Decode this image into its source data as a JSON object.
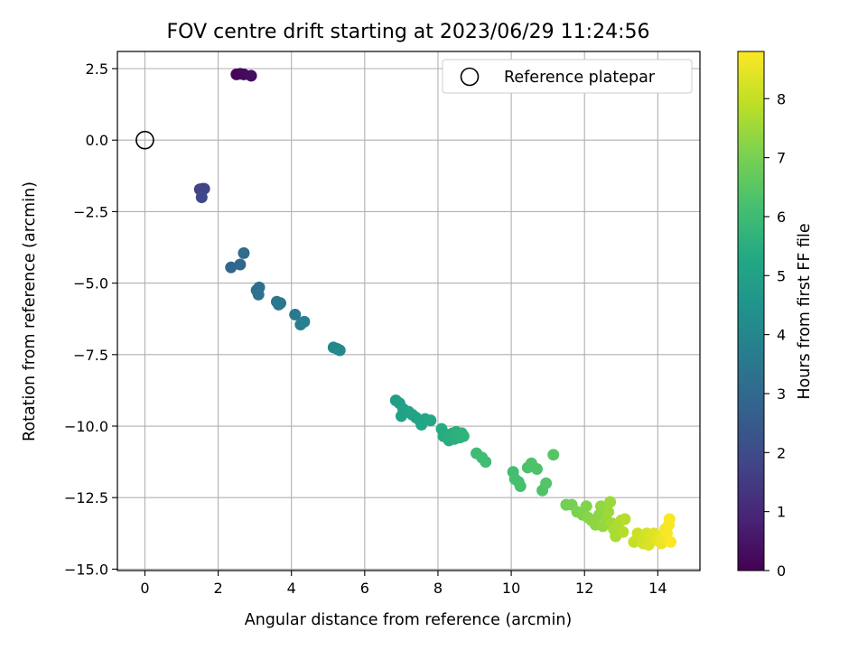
{
  "chart_data": {
    "type": "scatter",
    "title": "FOV centre drift starting at 2023/06/29 11:24:56",
    "xlabel": "Angular distance from reference (arcmin)",
    "ylabel": "Rotation from reference (arcmin)",
    "xlim": [
      -0.75,
      15.15
    ],
    "ylim": [
      -15.05,
      3.1
    ],
    "x_ticks": [
      0,
      2,
      4,
      6,
      8,
      10,
      12,
      14
    ],
    "y_ticks": [
      2.5,
      0.0,
      -2.5,
      -5.0,
      -7.5,
      -10.0,
      -12.5,
      -15.0
    ],
    "x_tick_labels": [
      "0",
      "2",
      "4",
      "6",
      "8",
      "10",
      "12",
      "14"
    ],
    "y_tick_labels": [
      "2.5",
      "0.0",
      "−2.5",
      "−5.0",
      "−7.5",
      "−10.0",
      "−12.5",
      "−15.0"
    ],
    "grid": true,
    "legend": {
      "position": "top-right",
      "entries": [
        "Reference platepar"
      ]
    },
    "reference_point": {
      "x": 0,
      "y": 0,
      "label": "Reference platepar"
    },
    "colorbar": {
      "label": "Hours from first FF file",
      "min": 0,
      "max": 8.8,
      "ticks": [
        0,
        1,
        2,
        3,
        4,
        5,
        6,
        7,
        8
      ],
      "colormap": "viridis"
    },
    "points": [
      {
        "x": 2.5,
        "y": 2.3,
        "h": 0.1
      },
      {
        "x": 2.6,
        "y": 2.32,
        "h": 0.15
      },
      {
        "x": 2.7,
        "y": 2.3,
        "h": 0.2
      },
      {
        "x": 2.9,
        "y": 2.25,
        "h": 0.3
      },
      {
        "x": 1.5,
        "y": -1.72,
        "h": 1.7
      },
      {
        "x": 1.58,
        "y": -1.7,
        "h": 1.75
      },
      {
        "x": 1.62,
        "y": -1.7,
        "h": 1.8
      },
      {
        "x": 1.55,
        "y": -2.0,
        "h": 1.9
      },
      {
        "x": 2.35,
        "y": -4.45,
        "h": 2.9
      },
      {
        "x": 2.6,
        "y": -4.35,
        "h": 3.0
      },
      {
        "x": 2.7,
        "y": -3.95,
        "h": 3.1
      },
      {
        "x": 3.05,
        "y": -5.25,
        "h": 3.2
      },
      {
        "x": 3.12,
        "y": -5.15,
        "h": 3.25
      },
      {
        "x": 3.1,
        "y": -5.4,
        "h": 3.3
      },
      {
        "x": 3.6,
        "y": -5.65,
        "h": 3.45
      },
      {
        "x": 3.65,
        "y": -5.75,
        "h": 3.5
      },
      {
        "x": 3.7,
        "y": -5.7,
        "h": 3.5
      },
      {
        "x": 4.1,
        "y": -6.1,
        "h": 3.6
      },
      {
        "x": 4.25,
        "y": -6.45,
        "h": 3.7
      },
      {
        "x": 4.35,
        "y": -6.35,
        "h": 3.75
      },
      {
        "x": 5.15,
        "y": -7.25,
        "h": 4.0
      },
      {
        "x": 5.25,
        "y": -7.3,
        "h": 4.05
      },
      {
        "x": 5.32,
        "y": -7.35,
        "h": 4.1
      },
      {
        "x": 6.85,
        "y": -9.1,
        "h": 4.9
      },
      {
        "x": 6.95,
        "y": -9.2,
        "h": 4.95
      },
      {
        "x": 7.05,
        "y": -9.4,
        "h": 5.0
      },
      {
        "x": 7.0,
        "y": -9.65,
        "h": 5.0
      },
      {
        "x": 7.2,
        "y": -9.5,
        "h": 5.05
      },
      {
        "x": 7.3,
        "y": -9.6,
        "h": 5.1
      },
      {
        "x": 7.4,
        "y": -9.7,
        "h": 5.1
      },
      {
        "x": 7.5,
        "y": -9.8,
        "h": 5.15
      },
      {
        "x": 7.55,
        "y": -9.95,
        "h": 5.2
      },
      {
        "x": 7.65,
        "y": -9.75,
        "h": 5.2
      },
      {
        "x": 7.8,
        "y": -9.8,
        "h": 5.25
      },
      {
        "x": 8.1,
        "y": -10.1,
        "h": 5.4
      },
      {
        "x": 8.15,
        "y": -10.35,
        "h": 5.45
      },
      {
        "x": 8.25,
        "y": -10.3,
        "h": 5.45
      },
      {
        "x": 8.3,
        "y": -10.5,
        "h": 5.5
      },
      {
        "x": 8.4,
        "y": -10.25,
        "h": 5.5
      },
      {
        "x": 8.45,
        "y": -10.45,
        "h": 5.55
      },
      {
        "x": 8.5,
        "y": -10.2,
        "h": 5.55
      },
      {
        "x": 8.55,
        "y": -10.3,
        "h": 5.6
      },
      {
        "x": 8.6,
        "y": -10.4,
        "h": 5.6
      },
      {
        "x": 8.65,
        "y": -10.25,
        "h": 5.62
      },
      {
        "x": 8.7,
        "y": -10.35,
        "h": 5.65
      },
      {
        "x": 9.05,
        "y": -10.95,
        "h": 6.0
      },
      {
        "x": 9.2,
        "y": -11.1,
        "h": 6.05
      },
      {
        "x": 9.3,
        "y": -11.25,
        "h": 6.05
      },
      {
        "x": 10.05,
        "y": -11.6,
        "h": 6.1
      },
      {
        "x": 10.1,
        "y": -11.85,
        "h": 6.15
      },
      {
        "x": 10.2,
        "y": -11.95,
        "h": 6.15
      },
      {
        "x": 10.25,
        "y": -12.1,
        "h": 6.2
      },
      {
        "x": 10.45,
        "y": -11.45,
        "h": 6.25
      },
      {
        "x": 10.55,
        "y": -11.3,
        "h": 6.3
      },
      {
        "x": 10.7,
        "y": -11.5,
        "h": 6.3
      },
      {
        "x": 10.85,
        "y": -12.25,
        "h": 6.35
      },
      {
        "x": 10.95,
        "y": -12.0,
        "h": 6.4
      },
      {
        "x": 11.15,
        "y": -11.0,
        "h": 6.45
      },
      {
        "x": 11.5,
        "y": -12.75,
        "h": 6.9
      },
      {
        "x": 11.65,
        "y": -12.75,
        "h": 6.95
      },
      {
        "x": 11.8,
        "y": -13.0,
        "h": 7.05
      },
      {
        "x": 11.95,
        "y": -13.1,
        "h": 7.1
      },
      {
        "x": 12.05,
        "y": -12.8,
        "h": 7.15
      },
      {
        "x": 12.1,
        "y": -13.2,
        "h": 7.2
      },
      {
        "x": 12.2,
        "y": -13.3,
        "h": 7.25
      },
      {
        "x": 12.3,
        "y": -13.45,
        "h": 7.3
      },
      {
        "x": 12.4,
        "y": -13.1,
        "h": 7.3
      },
      {
        "x": 12.45,
        "y": -12.8,
        "h": 7.35
      },
      {
        "x": 12.5,
        "y": -13.5,
        "h": 7.4
      },
      {
        "x": 12.6,
        "y": -13.3,
        "h": 7.45
      },
      {
        "x": 12.65,
        "y": -13.0,
        "h": 7.5
      },
      {
        "x": 12.7,
        "y": -12.65,
        "h": 7.5
      },
      {
        "x": 12.75,
        "y": -13.4,
        "h": 7.55
      },
      {
        "x": 12.8,
        "y": -13.6,
        "h": 7.6
      },
      {
        "x": 12.85,
        "y": -13.85,
        "h": 7.65
      },
      {
        "x": 12.9,
        "y": -13.5,
        "h": 7.7
      },
      {
        "x": 13.0,
        "y": -13.3,
        "h": 7.75
      },
      {
        "x": 13.05,
        "y": -13.7,
        "h": 7.8
      },
      {
        "x": 13.1,
        "y": -13.25,
        "h": 7.8
      },
      {
        "x": 13.35,
        "y": -14.05,
        "h": 8.0
      },
      {
        "x": 13.45,
        "y": -13.75,
        "h": 8.1
      },
      {
        "x": 13.55,
        "y": -13.85,
        "h": 8.15
      },
      {
        "x": 13.6,
        "y": -14.1,
        "h": 8.2
      },
      {
        "x": 13.7,
        "y": -13.75,
        "h": 8.25
      },
      {
        "x": 13.75,
        "y": -14.15,
        "h": 8.3
      },
      {
        "x": 13.85,
        "y": -13.95,
        "h": 8.35
      },
      {
        "x": 13.9,
        "y": -13.75,
        "h": 8.4
      },
      {
        "x": 14.0,
        "y": -14.0,
        "h": 8.45
      },
      {
        "x": 14.05,
        "y": -13.85,
        "h": 8.5
      },
      {
        "x": 14.1,
        "y": -14.1,
        "h": 8.55
      },
      {
        "x": 14.15,
        "y": -13.9,
        "h": 8.6
      },
      {
        "x": 14.2,
        "y": -13.6,
        "h": 8.65
      },
      {
        "x": 14.25,
        "y": -13.75,
        "h": 8.7
      },
      {
        "x": 14.3,
        "y": -13.45,
        "h": 8.72
      },
      {
        "x": 14.32,
        "y": -13.25,
        "h": 8.75
      },
      {
        "x": 14.35,
        "y": -14.05,
        "h": 8.78
      }
    ]
  }
}
